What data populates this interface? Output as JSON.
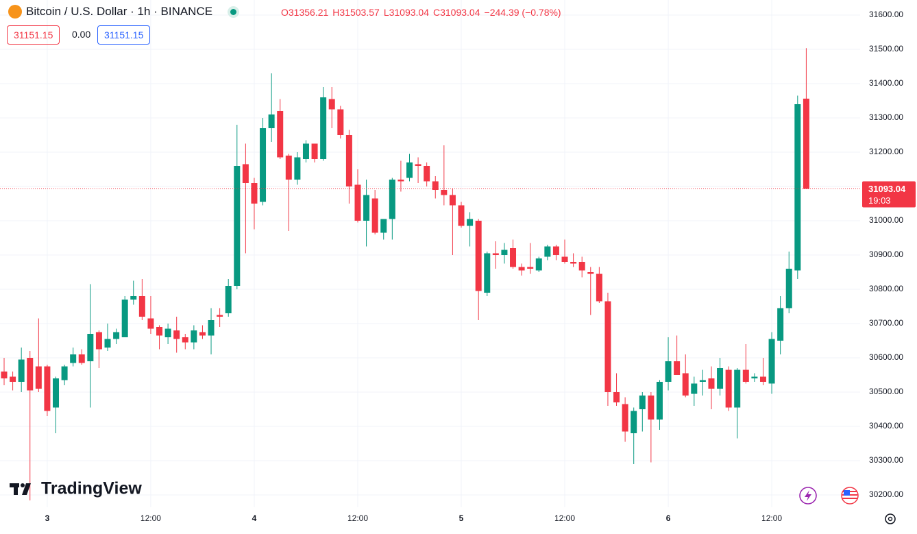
{
  "header": {
    "symbol": "Bitcoin / U.S. Dollar · 1h · BINANCE",
    "ohlc_legend": [
      "O31356.21",
      "H31503.57",
      "L31093.04",
      "C31093.04",
      "−244.39 (−0.78%)"
    ],
    "sell_price": "31151.15",
    "spread": "0.00",
    "buy_price": "31151.15"
  },
  "countdown": "19:03",
  "logo": "TradingView",
  "chart_data": {
    "type": "candlestick",
    "categories": [
      null,
      null,
      null,
      null,
      null,
      "3",
      null,
      null,
      null,
      null,
      null,
      null,
      null,
      null,
      null,
      null,
      null,
      "12:00",
      null,
      null,
      null,
      null,
      null,
      null,
      null,
      null,
      null,
      null,
      null,
      "4",
      null,
      null,
      null,
      null,
      null,
      null,
      null,
      null,
      null,
      null,
      null,
      "12:00",
      null,
      null,
      null,
      null,
      null,
      null,
      null,
      null,
      null,
      null,
      null,
      "5",
      null,
      null,
      null,
      null,
      null,
      null,
      null,
      null,
      null,
      null,
      null,
      "12:00",
      null,
      null,
      null,
      null,
      null,
      null,
      null,
      null,
      null,
      null,
      null,
      "6",
      null,
      null,
      null,
      null,
      null,
      null,
      null,
      null,
      null,
      null,
      null,
      "12:00",
      null,
      null,
      null,
      null
    ],
    "open": [
      30560,
      30545,
      30530,
      30600,
      30575,
      30575,
      30455,
      30535,
      30585,
      30610,
      30590,
      30675,
      30630,
      30655,
      30660,
      30770,
      30780,
      30715,
      30690,
      30660,
      30680,
      30660,
      30645,
      30675,
      30665,
      30725,
      30730,
      30810,
      31165,
      31110,
      31055,
      31270,
      31320,
      31190,
      31120,
      31180,
      31225,
      31180,
      31355,
      31325,
      31250,
      31105,
      31000,
      31065,
      30965,
      31005,
      31120,
      31125,
      31165,
      31160,
      31115,
      31090,
      31075,
      31045,
      30985,
      31000,
      30790,
      30905,
      30900,
      30920,
      30865,
      30865,
      30855,
      30895,
      30925,
      30895,
      30880,
      30880,
      30850,
      30845,
      30765,
      30500,
      30465,
      30380,
      30450,
      30490,
      30420,
      30530,
      30590,
      30555,
      30495,
      30530,
      30540,
      30510,
      30565,
      30455,
      30565,
      30540,
      30545,
      30525,
      30650,
      30745,
      30855,
      31356.21
    ],
    "high": [
      30600,
      30560,
      30630,
      30620,
      30715,
      30580,
      30545,
      30580,
      30630,
      30625,
      30815,
      30680,
      30700,
      30685,
      30780,
      30825,
      30830,
      30780,
      30695,
      30700,
      30720,
      30670,
      30695,
      30695,
      30745,
      30745,
      30830,
      31280,
      31225,
      31125,
      31300,
      31430,
      31355,
      31195,
      31200,
      31235,
      31225,
      31390,
      31390,
      31335,
      31265,
      31150,
      31120,
      31090,
      31005,
      31125,
      31175,
      31195,
      31185,
      31170,
      31130,
      31220,
      31095,
      31055,
      31025,
      31005,
      30910,
      30940,
      30935,
      30945,
      30875,
      30935,
      30895,
      30930,
      30930,
      30945,
      30905,
      30895,
      30865,
      30865,
      30790,
      30555,
      30485,
      30455,
      30500,
      30500,
      30535,
      30660,
      30665,
      30610,
      30545,
      30565,
      30575,
      30600,
      30575,
      30570,
      30640,
      30555,
      30600,
      30675,
      30780,
      30910,
      31365,
      31503.57
    ],
    "low": [
      30520,
      30505,
      30500,
      30184,
      30500,
      30430,
      30380,
      30520,
      30575,
      30580,
      30455,
      30570,
      30620,
      30640,
      30660,
      30755,
      30710,
      30670,
      30625,
      30640,
      30615,
      30625,
      30625,
      30655,
      30610,
      30690,
      30720,
      30800,
      30905,
      30975,
      31045,
      31230,
      31180,
      30970,
      31105,
      31170,
      31170,
      31175,
      31270,
      31240,
      31050,
      30995,
      30925,
      30960,
      30945,
      30945,
      31085,
      31115,
      31110,
      31100,
      31065,
      31045,
      30900,
      30980,
      30925,
      30710,
      30780,
      30860,
      30875,
      30860,
      30840,
      30845,
      30850,
      30885,
      30885,
      30875,
      30865,
      30835,
      30725,
      30760,
      30460,
      30460,
      30355,
      30290,
      30385,
      30295,
      30390,
      30505,
      30550,
      30485,
      30460,
      30490,
      30450,
      30490,
      30445,
      30365,
      30525,
      30530,
      30520,
      30495,
      30610,
      30730,
      30830,
      31093.04
    ],
    "close": [
      30540,
      30530,
      30595,
      30505,
      30510,
      30445,
      30540,
      30575,
      30610,
      30585,
      30670,
      30625,
      30655,
      30675,
      30770,
      30780,
      30720,
      30685,
      30665,
      30685,
      30655,
      30645,
      30680,
      30665,
      30710,
      30720,
      30810,
      31160,
      31110,
      31050,
      31270,
      31310,
      31185,
      31120,
      31185,
      31225,
      31180,
      31360,
      31325,
      31250,
      31100,
      31000,
      31075,
      30965,
      31005,
      31120,
      31115,
      31170,
      31160,
      31115,
      31090,
      31075,
      31045,
      30985,
      31005,
      30795,
      30905,
      30900,
      30915,
      30865,
      30855,
      30860,
      30890,
      30925,
      30900,
      30880,
      30875,
      30855,
      30845,
      30765,
      30500,
      30470,
      30385,
      30445,
      30490,
      30420,
      30530,
      30590,
      30550,
      30490,
      30525,
      30535,
      30510,
      30570,
      30455,
      30565,
      30530,
      30545,
      30530,
      30655,
      30745,
      30860,
      31340,
      31093.04
    ],
    "up_color": "#089981",
    "down_color": "#f23645",
    "ylim": [
      30164,
      31644
    ],
    "yticks": [
      {
        "value": 30200,
        "label": "30200.00"
      },
      {
        "value": 30300,
        "label": "30300.00"
      },
      {
        "value": 30400,
        "label": "30400.00"
      },
      {
        "value": 30500,
        "label": "30500.00"
      },
      {
        "value": 30600,
        "label": "30600.00"
      },
      {
        "value": 30700,
        "label": "30700.00"
      },
      {
        "value": 30800,
        "label": "30800.00"
      },
      {
        "value": 30900,
        "label": "30900.00"
      },
      {
        "value": 31000,
        "label": "31000.00"
      },
      {
        "value": 31100,
        "label": "31100.00"
      },
      {
        "value": 31200,
        "label": "31200.00"
      },
      {
        "value": 31300,
        "label": "31300.00"
      },
      {
        "value": 31400,
        "label": "31400.00"
      },
      {
        "value": 31500,
        "label": "31500.00"
      },
      {
        "value": 31600,
        "label": "31600.00"
      }
    ],
    "grid": true
  }
}
